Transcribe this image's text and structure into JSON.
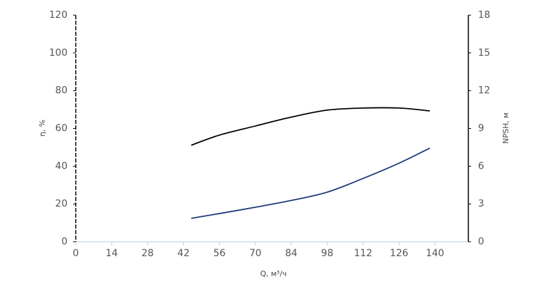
{
  "chart_data": {
    "type": "line",
    "y_label": "η, %",
    "y2_label": "NPSH, м",
    "x_label": "Q, м³/ч",
    "x": [
      45,
      56,
      70,
      84,
      98,
      112,
      126,
      138
    ],
    "series": [
      {
        "color": "#000000",
        "values": [
          51.1,
          56.5,
          61.3,
          66,
          69.7,
          70.8,
          70.8,
          69.3
        ]
      },
      {
        "color": "#1f3a7a",
        "axis": "y2",
        "values": [
          1.86,
          2.24,
          2.74,
          3.28,
          3.94,
          5.03,
          6.24,
          7.44
        ]
      }
    ],
    "xlim": [
      0,
      153
    ],
    "xticks": [
      0,
      14,
      28,
      42,
      56,
      70,
      84,
      98,
      112,
      126,
      140
    ],
    "ylim": [
      0,
      120
    ],
    "yticks": [
      0,
      20,
      40,
      60,
      80,
      100,
      120
    ],
    "y2lim": [
      0,
      18
    ],
    "y2ticks": [
      0,
      3,
      6,
      9,
      12,
      15,
      18
    ]
  }
}
